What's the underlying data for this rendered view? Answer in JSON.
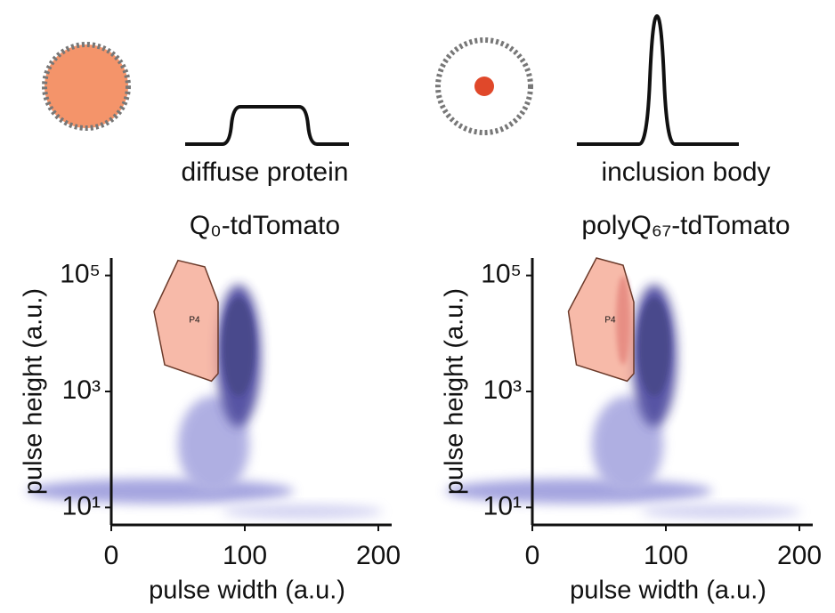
{
  "chart_data": [
    {
      "type": "scatter",
      "annotation": "diffuse protein",
      "title": "Q₀-tdTomato",
      "xlabel": "pulse width (a.u.)",
      "ylabel": "pulse height (a.u.)",
      "xlim": [
        0,
        210
      ],
      "ylim": [
        5,
        200000
      ],
      "log_y": true,
      "xticks": [
        0,
        100,
        200
      ],
      "yticks": [
        {
          "value": 10,
          "label": "10¹"
        },
        {
          "value": 1000,
          "label": "10³"
        },
        {
          "value": 100000,
          "label": "10⁵"
        }
      ],
      "color": "#2b2a8c",
      "gate": {
        "label": "P4",
        "color": "#f4a38c",
        "x": [
          50,
          70,
          80,
          80,
          75,
          40,
          32
        ],
        "y": [
          182000,
          141000,
          34700,
          2040,
          1510,
          2880,
          24000
        ]
      }
    },
    {
      "type": "scatter",
      "annotation": "inclusion body",
      "title": "polyQ₆₇-tdTomato",
      "xlabel": "pulse width (a.u.)",
      "ylabel": "pulse height (a.u.)",
      "xlim": [
        0,
        210
      ],
      "ylim": [
        5,
        200000
      ],
      "log_y": true,
      "xticks": [
        0,
        100,
        200
      ],
      "yticks": [
        {
          "value": 10,
          "label": "10¹"
        },
        {
          "value": 1000,
          "label": "10³"
        },
        {
          "value": 100000,
          "label": "10⁵"
        }
      ],
      "color": "#2b2a8c",
      "gate": {
        "label": "P4",
        "color": "#f4a38c",
        "x": [
          48,
          68,
          76,
          76,
          71,
          33,
          27
        ],
        "y": [
          200000,
          150000,
          34700,
          2040,
          1510,
          2880,
          24000
        ]
      }
    }
  ]
}
